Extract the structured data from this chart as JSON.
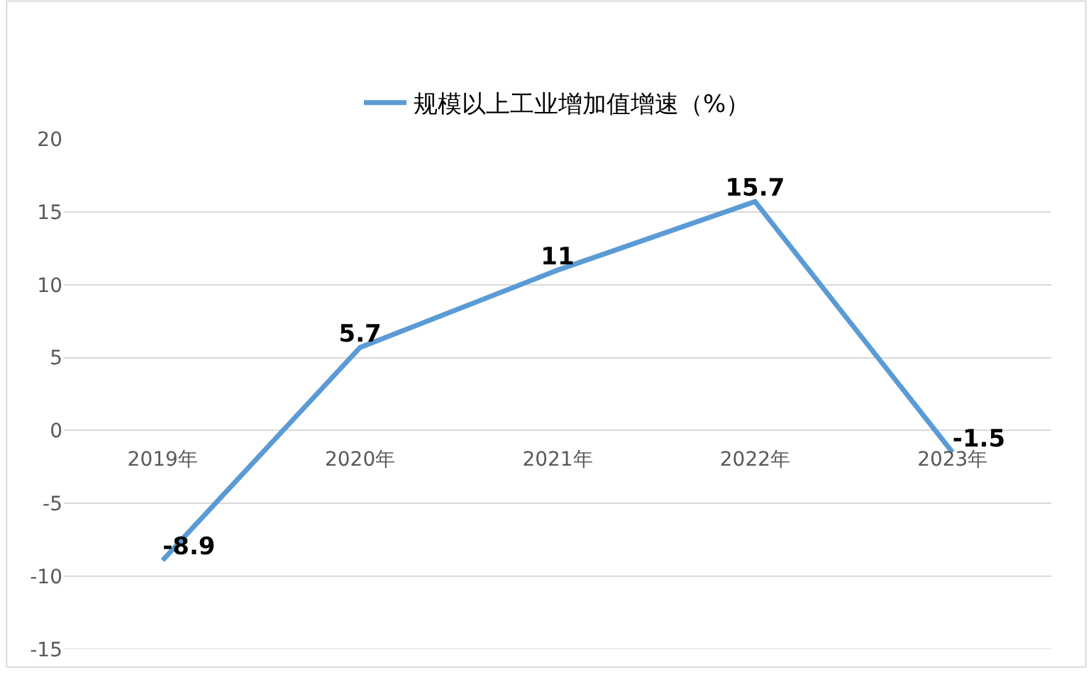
{
  "chart_data": {
    "type": "line",
    "categories": [
      "2019年",
      "2020年",
      "2021年",
      "2022年",
      "2023年"
    ],
    "series": [
      {
        "name": "规模以上工业增加值增速（%）",
        "color": "#5b9bd5",
        "values": [
          -8.9,
          5.7,
          11,
          15.7,
          -1.5
        ]
      }
    ],
    "ylim": [
      -15,
      20
    ],
    "yticks": [
      -15,
      -10,
      -5,
      0,
      5,
      10,
      15,
      20
    ],
    "grid": "y",
    "legend": "top",
    "marker": "none",
    "line_style": "solid",
    "data_labels": true
  }
}
